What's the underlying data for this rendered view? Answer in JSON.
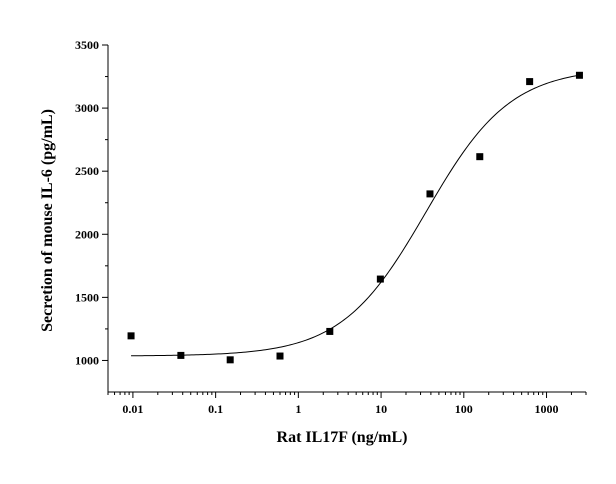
{
  "chart_data": {
    "type": "scatter",
    "xlabel": "Rat IL17F (ng/mL)",
    "ylabel": "Secretion of mouse IL-6 (pg/mL)",
    "x_scale": "log",
    "xlim": [
      0.005,
      3000
    ],
    "ylim": [
      750,
      3500
    ],
    "x_ticks": [
      0.01,
      0.1,
      1,
      10,
      100,
      1000
    ],
    "x_tick_labels": [
      "0.01",
      "0.1",
      "1",
      "10",
      "100",
      "1000"
    ],
    "y_ticks": [
      1000,
      1500,
      2000,
      2500,
      3000,
      3500
    ],
    "y_tick_labels": [
      "1000",
      "1500",
      "2000",
      "2500",
      "3000",
      "3500"
    ],
    "grid": false,
    "series": [
      {
        "marker": "square",
        "x": [
          0.0095,
          0.038,
          0.15,
          0.6,
          2.4,
          9.8,
          39,
          156,
          625,
          2500
        ],
        "y": [
          1195,
          1040,
          1005,
          1035,
          1230,
          1645,
          2320,
          2615,
          3210,
          3260
        ]
      }
    ],
    "fit": {
      "model": "4PL",
      "bottom": 1035,
      "top": 3320,
      "ec50": 35,
      "hill": 0.85
    }
  }
}
